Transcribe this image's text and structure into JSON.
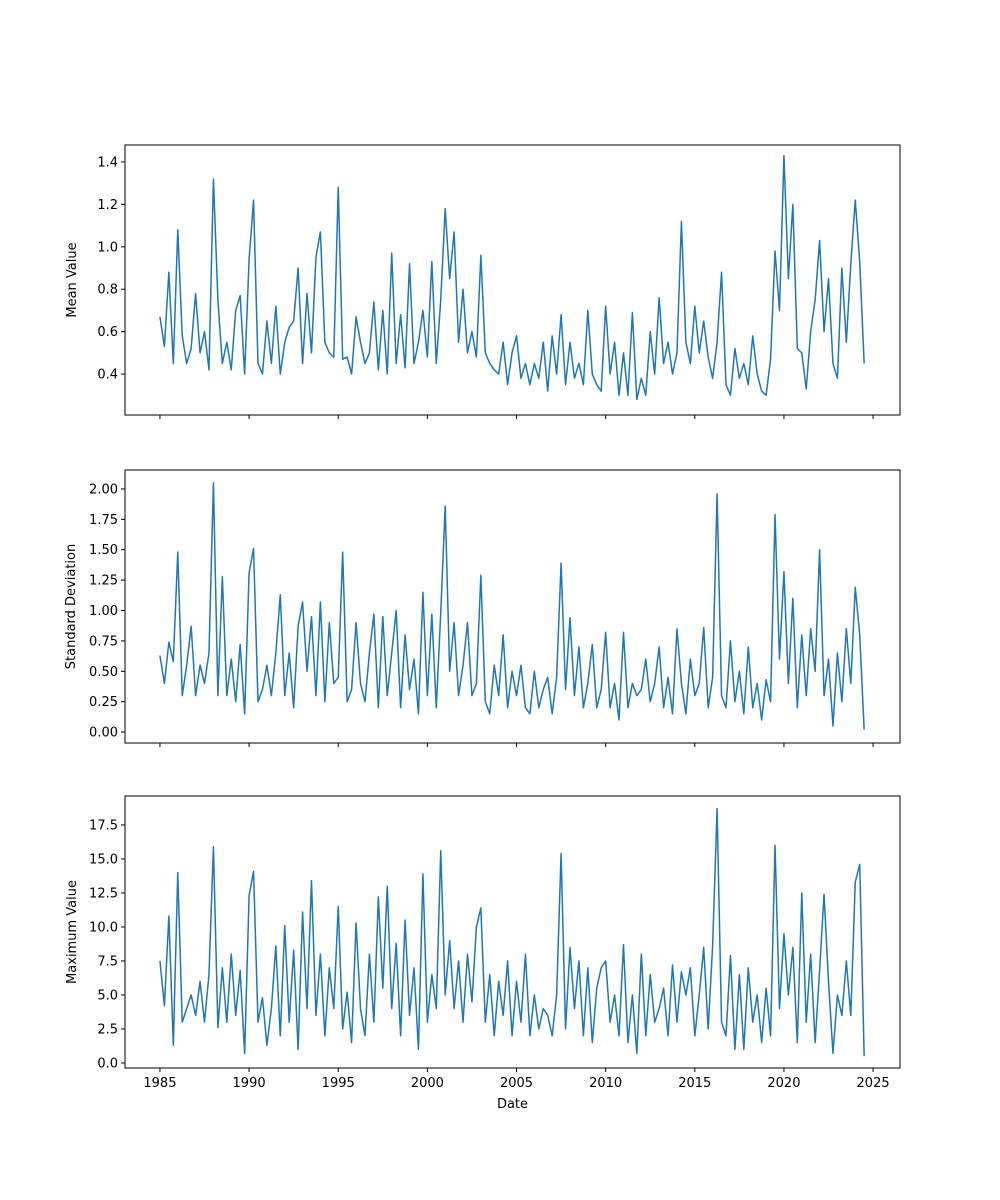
{
  "chart_data": [
    {
      "type": "line",
      "ylabel": "Mean Value",
      "color": "#1f77b4",
      "xlim": [
        1983.04,
        2026.51
      ],
      "xticks": [
        1985,
        1990,
        1995,
        2000,
        2005,
        2010,
        2015,
        2020,
        2025
      ],
      "ylim": [
        0.207,
        1.48
      ],
      "yticks": [
        0.4,
        0.6,
        0.8,
        {
          "value": 1,
          "label": "1.0"
        },
        1.2,
        1.4
      ],
      "x": [
        1985,
        1985.25,
        1985.5,
        1985.75,
        1986,
        1986.25,
        1986.5,
        1986.75,
        1987,
        1987.25,
        1987.5,
        1987.75,
        1988,
        1988.25,
        1988.5,
        1988.75,
        1989,
        1989.25,
        1989.5,
        1989.75,
        1990,
        1990.25,
        1990.5,
        1990.75,
        1991,
        1991.25,
        1991.5,
        1991.75,
        1992,
        1992.25,
        1992.5,
        1992.75,
        1993,
        1993.25,
        1993.5,
        1993.75,
        1994,
        1994.25,
        1994.5,
        1994.75,
        1995,
        1995.25,
        1995.5,
        1995.75,
        1996,
        1996.25,
        1996.5,
        1996.75,
        1997,
        1997.25,
        1997.5,
        1997.75,
        1998,
        1998.25,
        1998.5,
        1998.75,
        1999,
        1999.25,
        1999.5,
        1999.75,
        2000,
        2000.25,
        2000.5,
        2000.75,
        2001,
        2001.25,
        2001.5,
        2001.75,
        2002,
        2002.25,
        2002.5,
        2002.75,
        2003,
        2003.25,
        2003.5,
        2003.75,
        2004,
        2004.25,
        2004.5,
        2004.75,
        2005,
        2005.25,
        2005.5,
        2005.75,
        2006,
        2006.25,
        2006.5,
        2006.75,
        2007,
        2007.25,
        2007.5,
        2007.75,
        2008,
        2008.25,
        2008.5,
        2008.75,
        2009,
        2009.25,
        2009.5,
        2009.75,
        2010,
        2010.25,
        2010.5,
        2010.75,
        2011,
        2011.25,
        2011.5,
        2011.75,
        2012,
        2012.25,
        2012.5,
        2012.75,
        2013,
        2013.25,
        2013.5,
        2013.75,
        2014,
        2014.25,
        2014.5,
        2014.75,
        2015,
        2015.25,
        2015.5,
        2015.75,
        2016,
        2016.25,
        2016.5,
        2016.75,
        2017,
        2017.25,
        2017.5,
        2017.75,
        2018,
        2018.25,
        2018.5,
        2018.75,
        2019,
        2019.25,
        2019.5,
        2019.75,
        2020,
        2020.25,
        2020.5,
        2020.75,
        2021,
        2021.25,
        2021.5,
        2021.75,
        2022,
        2022.25,
        2022.5,
        2022.75,
        2023,
        2023.25,
        2023.5,
        2023.75,
        2024,
        2024.25,
        2024.5
      ],
      "values": [
        0.67,
        0.53,
        0.88,
        0.45,
        1.08,
        0.58,
        0.45,
        0.52,
        0.78,
        0.5,
        0.6,
        0.42,
        1.32,
        0.75,
        0.45,
        0.55,
        0.42,
        0.7,
        0.77,
        0.4,
        0.94,
        1.22,
        0.45,
        0.4,
        0.65,
        0.45,
        0.72,
        0.4,
        0.55,
        0.62,
        0.65,
        0.9,
        0.45,
        0.78,
        0.5,
        0.95,
        1.07,
        0.55,
        0.5,
        0.48,
        1.28,
        0.47,
        0.48,
        0.4,
        0.67,
        0.55,
        0.45,
        0.5,
        0.74,
        0.42,
        0.7,
        0.4,
        0.97,
        0.45,
        0.68,
        0.43,
        0.92,
        0.45,
        0.55,
        0.7,
        0.48,
        0.93,
        0.45,
        0.75,
        1.18,
        0.85,
        1.07,
        0.55,
        0.8,
        0.5,
        0.6,
        0.48,
        0.96,
        0.5,
        0.45,
        0.42,
        0.4,
        0.55,
        0.35,
        0.5,
        0.58,
        0.38,
        0.45,
        0.35,
        0.45,
        0.38,
        0.55,
        0.32,
        0.58,
        0.4,
        0.68,
        0.35,
        0.55,
        0.38,
        0.45,
        0.35,
        0.7,
        0.4,
        0.35,
        0.32,
        0.72,
        0.4,
        0.55,
        0.3,
        0.5,
        0.3,
        0.69,
        0.28,
        0.38,
        0.3,
        0.6,
        0.4,
        0.76,
        0.45,
        0.55,
        0.4,
        0.5,
        1.12,
        0.55,
        0.45,
        0.72,
        0.5,
        0.65,
        0.48,
        0.38,
        0.55,
        0.88,
        0.35,
        0.3,
        0.52,
        0.38,
        0.45,
        0.35,
        0.58,
        0.4,
        0.32,
        0.3,
        0.47,
        0.98,
        0.7,
        1.43,
        0.85,
        1.2,
        0.52,
        0.5,
        0.33,
        0.6,
        0.75,
        1.03,
        0.6,
        0.85,
        0.45,
        0.38,
        0.9,
        0.55,
        0.92,
        1.22,
        0.93,
        0.45
      ]
    },
    {
      "type": "line",
      "ylabel": "Standard Deviation",
      "color": "#1f77b4",
      "xlim": [
        1983.04,
        2026.51
      ],
      "xticks": [
        1985,
        1990,
        1995,
        2000,
        2005,
        2010,
        2015,
        2020,
        2025
      ],
      "ylim": [
        -0.09,
        2.156
      ],
      "yticks": [
        {
          "value": 0,
          "label": "0.00"
        },
        {
          "value": 0.25,
          "label": "0.25"
        },
        {
          "value": 0.5,
          "label": "0.50"
        },
        {
          "value": 0.75,
          "label": "0.75"
        },
        {
          "value": 1,
          "label": "1.00"
        },
        {
          "value": 1.25,
          "label": "1.25"
        },
        {
          "value": 1.5,
          "label": "1.50"
        },
        {
          "value": 1.75,
          "label": "1.75"
        },
        {
          "value": 2,
          "label": "2.00"
        }
      ],
      "x": [
        1985,
        1985.25,
        1985.5,
        1985.75,
        1986,
        1986.25,
        1986.5,
        1986.75,
        1987,
        1987.25,
        1987.5,
        1987.75,
        1988,
        1988.25,
        1988.5,
        1988.75,
        1989,
        1989.25,
        1989.5,
        1989.75,
        1990,
        1990.25,
        1990.5,
        1990.75,
        1991,
        1991.25,
        1991.5,
        1991.75,
        1992,
        1992.25,
        1992.5,
        1992.75,
        1993,
        1993.25,
        1993.5,
        1993.75,
        1994,
        1994.25,
        1994.5,
        1994.75,
        1995,
        1995.25,
        1995.5,
        1995.75,
        1996,
        1996.25,
        1996.5,
        1996.75,
        1997,
        1997.25,
        1997.5,
        1997.75,
        1998,
        1998.25,
        1998.5,
        1998.75,
        1999,
        1999.25,
        1999.5,
        1999.75,
        2000,
        2000.25,
        2000.5,
        2000.75,
        2001,
        2001.25,
        2001.5,
        2001.75,
        2002,
        2002.25,
        2002.5,
        2002.75,
        2003,
        2003.25,
        2003.5,
        2003.75,
        2004,
        2004.25,
        2004.5,
        2004.75,
        2005,
        2005.25,
        2005.5,
        2005.75,
        2006,
        2006.25,
        2006.5,
        2006.75,
        2007,
        2007.25,
        2007.5,
        2007.75,
        2008,
        2008.25,
        2008.5,
        2008.75,
        2009,
        2009.25,
        2009.5,
        2009.75,
        2010,
        2010.25,
        2010.5,
        2010.75,
        2011,
        2011.25,
        2011.5,
        2011.75,
        2012,
        2012.25,
        2012.5,
        2012.75,
        2013,
        2013.25,
        2013.5,
        2013.75,
        2014,
        2014.25,
        2014.5,
        2014.75,
        2015,
        2015.25,
        2015.5,
        2015.75,
        2016,
        2016.25,
        2016.5,
        2016.75,
        2017,
        2017.25,
        2017.5,
        2017.75,
        2018,
        2018.25,
        2018.5,
        2018.75,
        2019,
        2019.25,
        2019.5,
        2019.75,
        2020,
        2020.25,
        2020.5,
        2020.75,
        2021,
        2021.25,
        2021.5,
        2021.75,
        2022,
        2022.25,
        2022.5,
        2022.75,
        2023,
        2023.25,
        2023.5,
        2023.75,
        2024,
        2024.25,
        2024.5
      ],
      "values": [
        0.63,
        0.4,
        0.74,
        0.58,
        1.48,
        0.3,
        0.55,
        0.87,
        0.3,
        0.55,
        0.4,
        0.65,
        2.05,
        0.3,
        1.28,
        0.3,
        0.6,
        0.25,
        0.72,
        0.15,
        1.31,
        1.51,
        0.25,
        0.35,
        0.55,
        0.3,
        0.65,
        1.13,
        0.3,
        0.65,
        0.2,
        0.87,
        1.07,
        0.5,
        0.95,
        0.3,
        1.07,
        0.25,
        0.9,
        0.4,
        0.45,
        1.48,
        0.25,
        0.35,
        0.9,
        0.4,
        0.25,
        0.65,
        0.97,
        0.2,
        0.95,
        0.3,
        0.65,
        1.0,
        0.2,
        0.8,
        0.35,
        0.6,
        0.15,
        1.15,
        0.3,
        0.97,
        0.2,
        0.98,
        1.86,
        0.5,
        0.9,
        0.3,
        0.55,
        0.9,
        0.3,
        0.4,
        1.29,
        0.25,
        0.15,
        0.55,
        0.3,
        0.8,
        0.2,
        0.5,
        0.3,
        0.55,
        0.2,
        0.15,
        0.5,
        0.2,
        0.35,
        0.45,
        0.15,
        0.45,
        1.39,
        0.35,
        0.94,
        0.3,
        0.7,
        0.2,
        0.4,
        0.72,
        0.2,
        0.35,
        0.82,
        0.2,
        0.4,
        0.1,
        0.82,
        0.2,
        0.4,
        0.3,
        0.35,
        0.6,
        0.25,
        0.4,
        0.7,
        0.2,
        0.45,
        0.15,
        0.85,
        0.4,
        0.15,
        0.6,
        0.3,
        0.4,
        0.86,
        0.2,
        0.45,
        1.96,
        0.3,
        0.2,
        0.75,
        0.25,
        0.5,
        0.15,
        0.7,
        0.2,
        0.4,
        0.1,
        0.43,
        0.25,
        1.79,
        0.6,
        1.32,
        0.4,
        1.1,
        0.2,
        0.8,
        0.3,
        0.85,
        0.5,
        1.5,
        0.3,
        0.6,
        0.05,
        0.65,
        0.25,
        0.85,
        0.4,
        1.19,
        0.8,
        0.02
      ]
    },
    {
      "type": "line",
      "ylabel": "Maximum Value",
      "xlabel": "Date",
      "color": "#1f77b4",
      "xlim": [
        1983.04,
        2026.51
      ],
      "xticks": [
        1985,
        1990,
        1995,
        2000,
        2005,
        2010,
        2015,
        2020,
        2025
      ],
      "ylim": [
        -0.37,
        19.63
      ],
      "yticks": [
        {
          "value": 0,
          "label": "0.0"
        },
        2.5,
        {
          "value": 5,
          "label": "5.0"
        },
        7.5,
        {
          "value": 10,
          "label": "10.0"
        },
        12.5,
        {
          "value": 15,
          "label": "15.0"
        },
        17.5
      ],
      "x": [
        1985,
        1985.25,
        1985.5,
        1985.75,
        1986,
        1986.25,
        1986.5,
        1986.75,
        1987,
        1987.25,
        1987.5,
        1987.75,
        1988,
        1988.25,
        1988.5,
        1988.75,
        1989,
        1989.25,
        1989.5,
        1989.75,
        1990,
        1990.25,
        1990.5,
        1990.75,
        1991,
        1991.25,
        1991.5,
        1991.75,
        1992,
        1992.25,
        1992.5,
        1992.75,
        1993,
        1993.25,
        1993.5,
        1993.75,
        1994,
        1994.25,
        1994.5,
        1994.75,
        1995,
        1995.25,
        1995.5,
        1995.75,
        1996,
        1996.25,
        1996.5,
        1996.75,
        1997,
        1997.25,
        1997.5,
        1997.75,
        1998,
        1998.25,
        1998.5,
        1998.75,
        1999,
        1999.25,
        1999.5,
        1999.75,
        2000,
        2000.25,
        2000.5,
        2000.75,
        2001,
        2001.25,
        2001.5,
        2001.75,
        2002,
        2002.25,
        2002.5,
        2002.75,
        2003,
        2003.25,
        2003.5,
        2003.75,
        2004,
        2004.25,
        2004.5,
        2004.75,
        2005,
        2005.25,
        2005.5,
        2005.75,
        2006,
        2006.25,
        2006.5,
        2006.75,
        2007,
        2007.25,
        2007.5,
        2007.75,
        2008,
        2008.25,
        2008.5,
        2008.75,
        2009,
        2009.25,
        2009.5,
        2009.75,
        2010,
        2010.25,
        2010.5,
        2010.75,
        2011,
        2011.25,
        2011.5,
        2011.75,
        2012,
        2012.25,
        2012.5,
        2012.75,
        2013,
        2013.25,
        2013.5,
        2013.75,
        2014,
        2014.25,
        2014.5,
        2014.75,
        2015,
        2015.25,
        2015.5,
        2015.75,
        2016,
        2016.25,
        2016.5,
        2016.75,
        2017,
        2017.25,
        2017.5,
        2017.75,
        2018,
        2018.25,
        2018.5,
        2018.75,
        2019,
        2019.25,
        2019.5,
        2019.75,
        2020,
        2020.25,
        2020.5,
        2020.75,
        2021,
        2021.25,
        2021.5,
        2021.75,
        2022,
        2022.25,
        2022.5,
        2022.75,
        2023,
        2023.25,
        2023.5,
        2023.75,
        2024,
        2024.25,
        2024.5
      ],
      "values": [
        7.5,
        4.2,
        10.8,
        1.3,
        14.0,
        3.0,
        4.0,
        5.0,
        3.5,
        6.0,
        3.0,
        6.5,
        15.9,
        2.6,
        7.0,
        3.0,
        8.0,
        3.5,
        6.8,
        0.7,
        12.3,
        14.1,
        3.0,
        4.8,
        1.3,
        4.0,
        8.6,
        2.0,
        10.1,
        3.0,
        8.3,
        1.0,
        11.1,
        4.0,
        13.4,
        3.5,
        8.0,
        2.0,
        7.0,
        4.0,
        11.5,
        2.5,
        5.2,
        1.5,
        10.3,
        4.0,
        2.0,
        8.0,
        3.0,
        12.2,
        5.5,
        13.0,
        4.0,
        8.8,
        2.0,
        10.5,
        3.5,
        7.0,
        1.0,
        13.9,
        3.0,
        6.5,
        4.0,
        15.6,
        5.0,
        9.0,
        4.0,
        7.5,
        3.0,
        8.0,
        4.5,
        10.0,
        11.4,
        3.0,
        6.5,
        2.0,
        6.0,
        3.5,
        7.5,
        2.0,
        6.0,
        3.0,
        8.0,
        2.0,
        5.0,
        2.5,
        4.0,
        3.5,
        2.0,
        5.0,
        15.4,
        2.5,
        8.5,
        4.0,
        7.5,
        2.0,
        7.0,
        1.5,
        5.5,
        7.0,
        7.5,
        3.0,
        5.0,
        2.0,
        8.7,
        1.5,
        5.0,
        0.7,
        8.0,
        2.0,
        6.5,
        3.0,
        4.0,
        5.5,
        2.0,
        7.2,
        3.0,
        6.7,
        5.0,
        7.0,
        2.0,
        5.0,
        8.5,
        2.5,
        8.6,
        18.7,
        3.0,
        2.0,
        7.9,
        1.0,
        6.5,
        1.0,
        7.0,
        3.0,
        5.0,
        1.5,
        5.5,
        2.0,
        16.0,
        4.0,
        9.5,
        5.0,
        8.5,
        1.5,
        12.5,
        3.0,
        8.0,
        1.5,
        6.8,
        12.4,
        6.0,
        0.7,
        5.0,
        3.5,
        7.5,
        3.5,
        13.3,
        14.6,
        0.5
      ]
    }
  ]
}
